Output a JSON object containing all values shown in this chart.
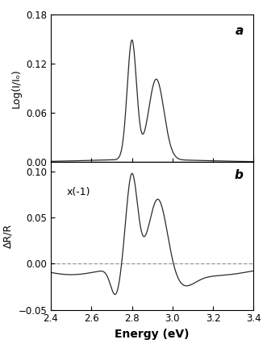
{
  "xlim": [
    2.4,
    3.4
  ],
  "xlabel": "Energy (eV)",
  "panel_a_label": "a",
  "panel_b_label": "b",
  "panel_a_ylabel": "Log(I/Iₒ)",
  "panel_b_ylabel": "ΔR/R",
  "panel_a_ylim": [
    0.0,
    0.18
  ],
  "panel_a_yticks": [
    0.0,
    0.06,
    0.12,
    0.18
  ],
  "panel_b_ylim": [
    -0.05,
    0.11
  ],
  "panel_b_yticks": [
    -0.05,
    0.0,
    0.05,
    0.1
  ],
  "panel_b_annotation": "x(-1)",
  "line_color": "#2a2a2a",
  "dashed_color": "#999999",
  "background_color": "#ffffff",
  "xticks": [
    2.4,
    2.6,
    2.8,
    3.0,
    3.2,
    3.4
  ]
}
